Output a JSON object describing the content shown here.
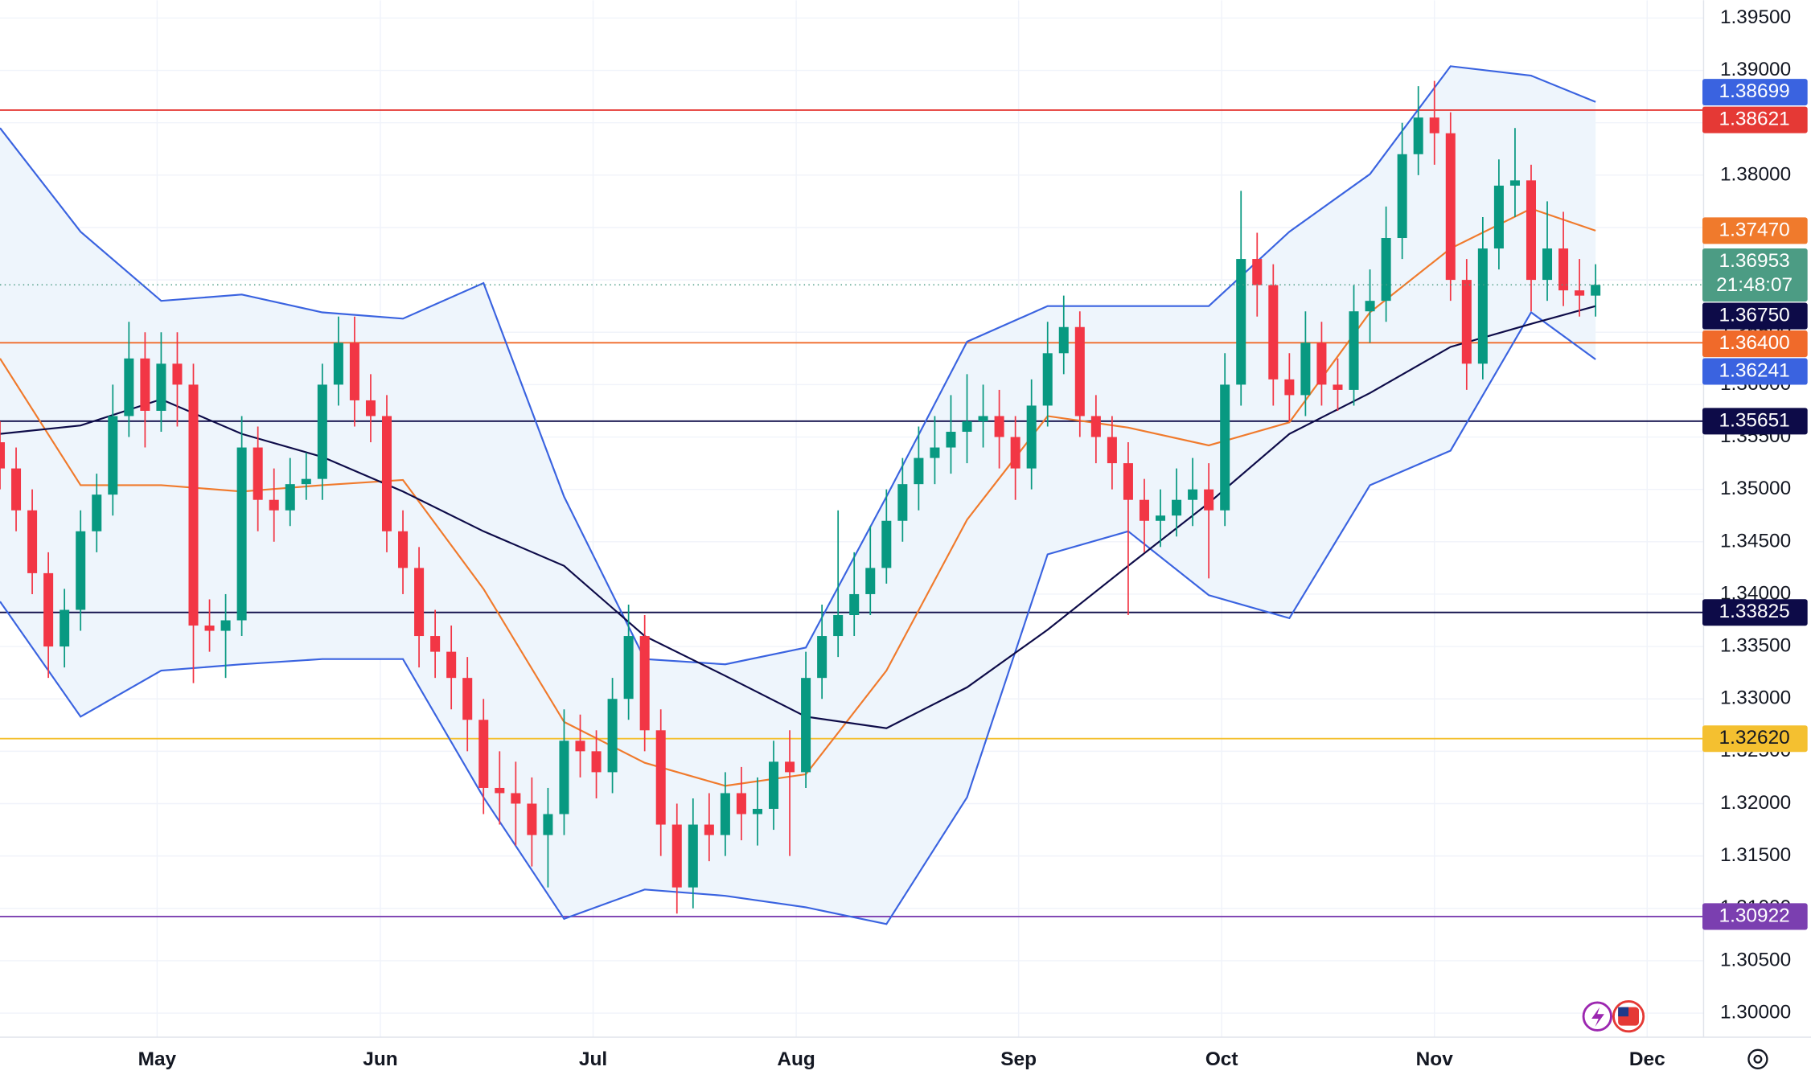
{
  "chart_data": {
    "type": "candlestick",
    "x": [
      0,
      1,
      2,
      3,
      4,
      5,
      6,
      7,
      8,
      9,
      10,
      11,
      12,
      13,
      14,
      15,
      16,
      17,
      18,
      19,
      20,
      21,
      22,
      23,
      24,
      25,
      26,
      27,
      28,
      29,
      30,
      31,
      32,
      33,
      34,
      35,
      36,
      37,
      38,
      39,
      40,
      41,
      42,
      43,
      44,
      45,
      46,
      47,
      48,
      49,
      50,
      51,
      52,
      53,
      54,
      55,
      56,
      57,
      58,
      59,
      60,
      61,
      62,
      63,
      64,
      65,
      66,
      67,
      68,
      69,
      70,
      71,
      72,
      73,
      74,
      75,
      76,
      77,
      78,
      79,
      80,
      81,
      82,
      83,
      84,
      85,
      86,
      87,
      88,
      89,
      90,
      91,
      92,
      93,
      94,
      95,
      96,
      97,
      98,
      99
    ],
    "open": [
      1.3545,
      1.352,
      1.348,
      1.342,
      1.335,
      1.3385,
      1.346,
      1.3495,
      1.357,
      1.3625,
      1.3575,
      1.362,
      1.36,
      1.337,
      1.3365,
      1.3375,
      1.354,
      1.349,
      1.348,
      1.3505,
      1.351,
      1.36,
      1.364,
      1.3585,
      1.357,
      1.346,
      1.3425,
      1.336,
      1.3345,
      1.332,
      1.328,
      1.3215,
      1.321,
      1.32,
      1.317,
      1.319,
      1.326,
      1.325,
      1.323,
      1.33,
      1.336,
      1.327,
      1.318,
      1.312,
      1.318,
      1.317,
      1.321,
      1.319,
      1.3195,
      1.324,
      1.323,
      1.332,
      1.336,
      1.338,
      1.34,
      1.3425,
      1.347,
      1.3505,
      1.353,
      1.354,
      1.3555,
      1.3565,
      1.357,
      1.355,
      1.352,
      1.358,
      1.363,
      1.3655,
      1.357,
      1.355,
      1.3525,
      1.349,
      1.347,
      1.3475,
      1.349,
      1.35,
      1.348,
      1.36,
      1.372,
      1.3695,
      1.3605,
      1.359,
      1.364,
      1.36,
      1.3595,
      1.367,
      1.368,
      1.374,
      1.382,
      1.3855,
      1.384,
      1.37,
      1.362,
      1.373,
      1.379,
      1.3795,
      1.37,
      1.373,
      1.369,
      1.3685
    ],
    "high": [
      1.3565,
      1.354,
      1.35,
      1.344,
      1.3405,
      1.348,
      1.3515,
      1.36,
      1.366,
      1.365,
      1.365,
      1.365,
      1.362,
      1.3395,
      1.34,
      1.357,
      1.356,
      1.352,
      1.353,
      1.3535,
      1.362,
      1.3665,
      1.3665,
      1.361,
      1.359,
      1.348,
      1.3445,
      1.3385,
      1.337,
      1.334,
      1.33,
      1.325,
      1.324,
      1.3225,
      1.3215,
      1.329,
      1.3285,
      1.327,
      1.332,
      1.339,
      1.338,
      1.329,
      1.32,
      1.3205,
      1.321,
      1.323,
      1.3235,
      1.3225,
      1.326,
      1.327,
      1.3345,
      1.339,
      1.348,
      1.344,
      1.3465,
      1.35,
      1.353,
      1.356,
      1.357,
      1.359,
      1.361,
      1.36,
      1.3595,
      1.357,
      1.3605,
      1.366,
      1.3685,
      1.367,
      1.359,
      1.357,
      1.3545,
      1.351,
      1.35,
      1.352,
      1.353,
      1.3525,
      1.363,
      1.3785,
      1.3745,
      1.3715,
      1.363,
      1.367,
      1.366,
      1.3625,
      1.3695,
      1.371,
      1.377,
      1.385,
      1.3885,
      1.389,
      1.386,
      1.372,
      1.376,
      1.3815,
      1.3845,
      1.381,
      1.3775,
      1.3765,
      1.372,
      1.3715
    ],
    "low": [
      1.35,
      1.346,
      1.34,
      1.332,
      1.333,
      1.3365,
      1.344,
      1.3475,
      1.355,
      1.354,
      1.3555,
      1.356,
      1.3315,
      1.3345,
      1.332,
      1.336,
      1.346,
      1.345,
      1.3465,
      1.349,
      1.349,
      1.358,
      1.356,
      1.3545,
      1.344,
      1.34,
      1.333,
      1.332,
      1.329,
      1.325,
      1.319,
      1.318,
      1.316,
      1.314,
      1.312,
      1.317,
      1.3225,
      1.3205,
      1.321,
      1.328,
      1.325,
      1.315,
      1.3095,
      1.31,
      1.3145,
      1.315,
      1.3165,
      1.316,
      1.3175,
      1.315,
      1.3215,
      1.33,
      1.334,
      1.336,
      1.338,
      1.341,
      1.345,
      1.348,
      1.3505,
      1.3515,
      1.3525,
      1.354,
      1.352,
      1.349,
      1.35,
      1.356,
      1.361,
      1.355,
      1.3525,
      1.35,
      1.338,
      1.344,
      1.3445,
      1.3455,
      1.3465,
      1.3415,
      1.3465,
      1.358,
      1.3665,
      1.358,
      1.3565,
      1.357,
      1.358,
      1.3575,
      1.358,
      1.364,
      1.366,
      1.372,
      1.38,
      1.381,
      1.368,
      1.3595,
      1.3605,
      1.371,
      1.376,
      1.367,
      1.368,
      1.3675,
      1.3665,
      1.3665
    ],
    "close": [
      1.352,
      1.348,
      1.342,
      1.335,
      1.3385,
      1.346,
      1.3495,
      1.357,
      1.3625,
      1.3575,
      1.362,
      1.36,
      1.337,
      1.3365,
      1.3375,
      1.354,
      1.349,
      1.348,
      1.3505,
      1.351,
      1.36,
      1.364,
      1.3585,
      1.357,
      1.346,
      1.3425,
      1.336,
      1.3345,
      1.332,
      1.328,
      1.3215,
      1.321,
      1.32,
      1.317,
      1.319,
      1.326,
      1.325,
      1.323,
      1.33,
      1.336,
      1.327,
      1.318,
      1.312,
      1.318,
      1.317,
      1.321,
      1.319,
      1.3195,
      1.324,
      1.323,
      1.332,
      1.336,
      1.338,
      1.34,
      1.3425,
      1.347,
      1.3505,
      1.353,
      1.354,
      1.3555,
      1.3565,
      1.357,
      1.355,
      1.352,
      1.358,
      1.363,
      1.3655,
      1.357,
      1.355,
      1.3525,
      1.349,
      1.347,
      1.3475,
      1.349,
      1.35,
      1.348,
      1.36,
      1.372,
      1.3695,
      1.3605,
      1.359,
      1.364,
      1.36,
      1.3595,
      1.367,
      1.368,
      1.374,
      1.382,
      1.3855,
      1.384,
      1.37,
      1.362,
      1.373,
      1.379,
      1.3795,
      1.37,
      1.373,
      1.369,
      1.3685,
      1.36953
    ],
    "up_color": "#089981",
    "down_color": "#f23645",
    "xlim": [
      0,
      105.7
    ],
    "ylim": [
      1.2977,
      1.3967
    ],
    "xticks": [
      {
        "value": 9.75,
        "label": "May"
      },
      {
        "value": 23.6,
        "label": "Jun"
      },
      {
        "value": 36.8,
        "label": "Jul"
      },
      {
        "value": 49.4,
        "label": "Aug"
      },
      {
        "value": 63.2,
        "label": "Sep"
      },
      {
        "value": 75.8,
        "label": "Oct"
      },
      {
        "value": 89,
        "label": "Nov"
      },
      {
        "value": 102.2,
        "label": "Dec"
      }
    ],
    "yticks": [
      {
        "value": 1.3,
        "label": "1.30000"
      },
      {
        "value": 1.305,
        "label": "1.30500"
      },
      {
        "value": 1.31,
        "label": "1.31000"
      },
      {
        "value": 1.315,
        "label": "1.31500"
      },
      {
        "value": 1.32,
        "label": "1.32000"
      },
      {
        "value": 1.325,
        "label": "1.32500"
      },
      {
        "value": 1.33,
        "label": "1.33000"
      },
      {
        "value": 1.335,
        "label": "1.33500"
      },
      {
        "value": 1.34,
        "label": "1.34000"
      },
      {
        "value": 1.345,
        "label": "1.34500"
      },
      {
        "value": 1.35,
        "label": "1.35000"
      },
      {
        "value": 1.355,
        "label": "1.35500"
      },
      {
        "value": 1.36,
        "label": "1.36000"
      },
      {
        "value": 1.365,
        "label": "1.36500"
      },
      {
        "value": 1.37,
        "label": "1.37000"
      },
      {
        "value": 1.375,
        "label": "1.37500"
      },
      {
        "value": 1.38,
        "label": "1.38000"
      },
      {
        "value": 1.385,
        "label": "1.38500"
      },
      {
        "value": 1.39,
        "label": "1.39000"
      },
      {
        "value": 1.395,
        "label": "1.39500"
      }
    ],
    "grid": true,
    "band_fill": "#eef5fc",
    "lines": [
      {
        "color": "#3a63e0",
        "x": [
          0,
          5,
          10,
          15,
          20,
          25,
          30,
          35,
          40,
          45,
          50,
          55,
          60,
          65,
          70,
          75,
          80,
          85,
          90,
          95,
          99
        ],
        "values": [
          1.3845,
          1.3746,
          1.368,
          1.3686,
          1.3669,
          1.3663,
          1.3697,
          1.3493,
          1.3338,
          1.3333,
          1.3349,
          1.3493,
          1.3641,
          1.3675,
          1.3675,
          1.3675,
          1.3746,
          1.3801,
          1.3904,
          1.3895,
          1.38699
        ],
        "last_label": "1.38699"
      },
      {
        "color": "#3a63e0",
        "x": [
          0,
          5,
          10,
          15,
          20,
          25,
          30,
          35,
          40,
          45,
          50,
          55,
          60,
          65,
          70,
          75,
          80,
          85,
          90,
          95,
          99
        ],
        "values": [
          1.3393,
          1.3283,
          1.3327,
          1.3333,
          1.3338,
          1.3338,
          1.3206,
          1.309,
          1.3118,
          1.3112,
          1.3101,
          1.3085,
          1.3206,
          1.3438,
          1.346,
          1.3399,
          1.3377,
          1.3504,
          1.3537,
          1.3669,
          1.36241
        ],
        "last_label": "1.36241"
      },
      {
        "color": "#f07a2c",
        "x": [
          0,
          5,
          10,
          15,
          20,
          25,
          30,
          35,
          40,
          45,
          50,
          55,
          60,
          65,
          70,
          75,
          80,
          85,
          90,
          95,
          99
        ],
        "values": [
          1.3625,
          1.3504,
          1.3504,
          1.3498,
          1.3504,
          1.3509,
          1.3405,
          1.3278,
          1.3239,
          1.3217,
          1.3228,
          1.3327,
          1.3471,
          1.357,
          1.3559,
          1.3542,
          1.3564,
          1.3669,
          1.373,
          1.3768,
          1.3747
        ],
        "last_label": "1.37470"
      },
      {
        "color": "#0d0b48",
        "x": [
          0,
          5,
          10,
          15,
          20,
          25,
          30,
          35,
          40,
          45,
          50,
          55,
          60,
          65,
          70,
          75,
          80,
          85,
          90,
          95,
          99
        ],
        "values": [
          1.3553,
          1.3561,
          1.3586,
          1.3553,
          1.3531,
          1.3498,
          1.346,
          1.3427,
          1.336,
          1.3322,
          1.3283,
          1.3272,
          1.3311,
          1.3366,
          1.3427,
          1.3487,
          1.3553,
          1.3592,
          1.3636,
          1.3658,
          1.3675
        ],
        "last_label": "1.36750"
      }
    ],
    "last_price": {
      "label": "1.36953",
      "countdown": "21:48:07",
      "color": "#4c9c84"
    },
    "levels": [
      {
        "value": 1.38621,
        "label": "1.38621",
        "color": "#e53935"
      },
      {
        "value": 1.364,
        "label": "1.36400",
        "color": "#f06a2a"
      },
      {
        "value": 1.35651,
        "label": "1.35651",
        "color": "#0d0b48"
      },
      {
        "value": 1.33825,
        "label": "1.33825",
        "color": "#0d0b48"
      },
      {
        "value": 1.3262,
        "label": "1.32620",
        "color": "#f4c030"
      },
      {
        "value": 1.30922,
        "label": "1.30922",
        "color": "#7b3fb0"
      }
    ]
  }
}
